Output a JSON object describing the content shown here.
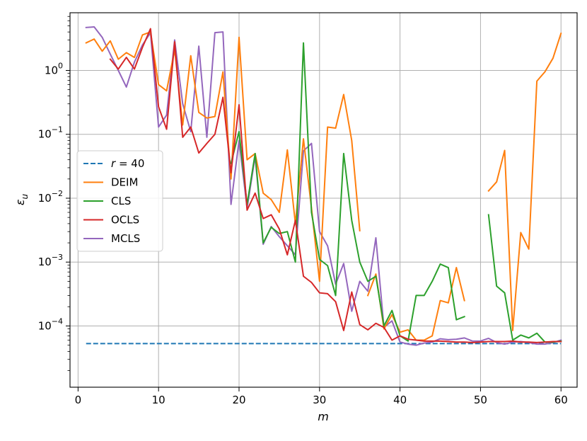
{
  "chart_data": {
    "type": "line",
    "xlabel": "m",
    "ylabel": "ε_u",
    "yscale": "log",
    "xlim": [
      -1,
      62
    ],
    "ylim": [
      1.1e-05,
      8
    ],
    "grid": true,
    "legend_position": "center-left",
    "x_ticks": [
      0,
      10,
      20,
      30,
      40,
      50,
      60
    ],
    "x_tick_labels": [
      "0",
      "10",
      "20",
      "30",
      "40",
      "50",
      "60"
    ],
    "y_ticks": [
      0.0001,
      0.001,
      0.01,
      0.1,
      1
    ],
    "y_tick_labels": [
      {
        "base": "10",
        "exp": "−4"
      },
      {
        "base": "10",
        "exp": "−3"
      },
      {
        "base": "10",
        "exp": "−2"
      },
      {
        "base": "10",
        "exp": "−1"
      },
      {
        "base": "10",
        "exp": "0"
      }
    ],
    "series": [
      {
        "name": "r = 40",
        "legend_label": {
          "var": "r",
          "rest": " = 40"
        },
        "color": "#1f77b4",
        "dashed": true,
        "points": [
          [
            1,
            5.3e-05
          ],
          [
            60,
            5.3e-05
          ]
        ]
      },
      {
        "name": "DEIM",
        "legend_label": {
          "var": "",
          "rest": "DEIM"
        },
        "color": "#ff7f0e",
        "dashed": false,
        "points": [
          [
            1,
            2.7
          ],
          [
            2,
            3.1
          ],
          [
            3,
            2.0
          ],
          [
            4,
            2.9
          ],
          [
            5,
            1.5
          ],
          [
            6,
            1.9
          ],
          [
            7,
            1.6
          ],
          [
            8,
            3.6
          ],
          [
            9,
            4.0
          ],
          [
            10,
            0.6
          ],
          [
            11,
            0.48
          ],
          [
            12,
            2.1
          ],
          [
            13,
            0.14
          ],
          [
            14,
            1.7
          ],
          [
            15,
            0.22
          ],
          [
            16,
            0.18
          ],
          [
            17,
            0.19
          ],
          [
            18,
            0.95
          ],
          [
            19,
            0.02
          ],
          [
            20,
            3.3
          ],
          [
            21,
            0.04
          ],
          [
            22,
            0.05
          ],
          [
            23,
            0.012
          ],
          [
            24,
            0.0095
          ],
          [
            25,
            0.006
          ],
          [
            26,
            0.057
          ],
          [
            27,
            0.004
          ],
          [
            28,
            0.085
          ],
          [
            29,
            0.007
          ],
          [
            30,
            0.0005
          ],
          [
            31,
            0.13
          ],
          [
            32,
            0.125
          ],
          [
            33,
            0.42
          ],
          [
            34,
            0.08
          ],
          [
            35,
            0.0031
          ],
          [
            null,
            null
          ],
          [
            36,
            0.0003
          ],
          [
            37,
            0.00065
          ],
          [
            38,
            9e-05
          ],
          [
            39,
            0.00015
          ],
          [
            40,
            8e-05
          ],
          [
            41,
            8.7e-05
          ],
          [
            42,
            6e-05
          ],
          [
            43,
            6e-05
          ],
          [
            44,
            7e-05
          ],
          [
            45,
            0.00025
          ],
          [
            46,
            0.00023
          ],
          [
            47,
            0.00082
          ],
          [
            48,
            0.00025
          ],
          [
            null,
            null
          ],
          [
            51,
            0.013
          ],
          [
            52,
            0.018
          ],
          [
            53,
            0.056
          ],
          [
            54,
            8.5e-05
          ],
          [
            55,
            0.0029
          ],
          [
            56,
            0.0016
          ],
          [
            57,
            0.68
          ],
          [
            58,
            0.95
          ],
          [
            59,
            1.55
          ],
          [
            60,
            3.8
          ]
        ]
      },
      {
        "name": "CLS",
        "legend_label": {
          "var": "",
          "rest": "CLS"
        },
        "color": "#2ca02c",
        "dashed": false,
        "points": [
          [
            19,
            0.035
          ],
          [
            20,
            0.11
          ],
          [
            21,
            0.008
          ],
          [
            22,
            0.05
          ],
          [
            23,
            0.002
          ],
          [
            24,
            0.0035
          ],
          [
            25,
            0.0028
          ],
          [
            26,
            0.003
          ],
          [
            27,
            0.001
          ],
          [
            28,
            2.7
          ],
          [
            29,
            0.006
          ],
          [
            30,
            0.0011
          ],
          [
            31,
            0.00088
          ],
          [
            32,
            0.0003
          ],
          [
            33,
            0.05
          ],
          [
            34,
            0.0045
          ],
          [
            35,
            0.001
          ],
          [
            36,
            0.0005
          ],
          [
            37,
            0.0006
          ],
          [
            38,
            0.0001
          ],
          [
            39,
            0.000175
          ],
          [
            40,
            7e-05
          ],
          [
            41,
            5.8e-05
          ],
          [
            42,
            0.0003
          ],
          [
            43,
            0.0003
          ],
          [
            44,
            0.0005
          ],
          [
            45,
            0.00093
          ],
          [
            46,
            0.00082
          ],
          [
            47,
            0.000125
          ],
          [
            48,
            0.00014
          ],
          [
            null,
            null
          ],
          [
            51,
            0.0055
          ],
          [
            52,
            0.00042
          ],
          [
            53,
            0.00033
          ],
          [
            54,
            6e-05
          ],
          [
            55,
            7.2e-05
          ],
          [
            56,
            6.5e-05
          ],
          [
            57,
            7.7e-05
          ],
          [
            58,
            5.6e-05
          ],
          [
            59,
            5.6e-05
          ],
          [
            60,
            5.8e-05
          ]
        ]
      },
      {
        "name": "OCLS",
        "legend_label": {
          "var": "",
          "rest": "OCLS"
        },
        "color": "#d62728",
        "dashed": false,
        "points": [
          [
            4,
            1.5
          ],
          [
            5,
            1.05
          ],
          [
            6,
            1.6
          ],
          [
            7,
            1.05
          ],
          [
            8,
            2.3
          ],
          [
            9,
            4.5
          ],
          [
            10,
            0.27
          ],
          [
            11,
            0.12
          ],
          [
            12,
            2.8
          ],
          [
            13,
            0.09
          ],
          [
            14,
            0.13
          ],
          [
            15,
            0.051
          ],
          [
            16,
            0.072
          ],
          [
            17,
            0.1
          ],
          [
            18,
            0.38
          ],
          [
            19,
            0.025
          ],
          [
            20,
            0.29
          ],
          [
            21,
            0.0065
          ],
          [
            22,
            0.012
          ],
          [
            23,
            0.0048
          ],
          [
            24,
            0.0055
          ],
          [
            25,
            0.0033
          ],
          [
            26,
            0.0013
          ],
          [
            27,
            0.0045
          ],
          [
            28,
            0.0006
          ],
          [
            29,
            0.00048
          ],
          [
            30,
            0.00033
          ],
          [
            31,
            0.00032
          ],
          [
            32,
            0.00024
          ],
          [
            33,
            8.5e-05
          ],
          [
            34,
            0.00034
          ],
          [
            35,
            0.000105
          ],
          [
            36,
            8.7e-05
          ],
          [
            37,
            0.00011
          ],
          [
            38,
            9.5e-05
          ],
          [
            39,
            6e-05
          ],
          [
            40,
            7e-05
          ],
          [
            41,
            6.2e-05
          ],
          [
            42,
            6e-05
          ],
          [
            43,
            5.8e-05
          ],
          [
            44,
            5.8e-05
          ],
          [
            45,
            5.8e-05
          ],
          [
            46,
            5.7e-05
          ],
          [
            47,
            5.6e-05
          ],
          [
            48,
            5.6e-05
          ],
          [
            49,
            5.5e-05
          ],
          [
            50,
            5.6e-05
          ],
          [
            51,
            5.7e-05
          ],
          [
            52,
            5.7e-05
          ],
          [
            53,
            5.7e-05
          ],
          [
            54,
            5.8e-05
          ],
          [
            55,
            5.6e-05
          ],
          [
            56,
            5.6e-05
          ],
          [
            57,
            5.5e-05
          ],
          [
            58,
            5.6e-05
          ],
          [
            59,
            5.7e-05
          ],
          [
            60,
            5.7e-05
          ]
        ]
      },
      {
        "name": "MCLS",
        "legend_label": {
          "var": "",
          "rest": "MCLS"
        },
        "color": "#9467bd",
        "dashed": false,
        "points": [
          [
            1,
            4.7
          ],
          [
            2,
            4.8
          ],
          [
            3,
            3.3
          ],
          [
            4,
            1.8
          ],
          [
            5,
            1.0
          ],
          [
            6,
            0.55
          ],
          [
            7,
            1.35
          ],
          [
            8,
            2.5
          ],
          [
            9,
            3.9
          ],
          [
            10,
            0.13
          ],
          [
            11,
            0.2
          ],
          [
            12,
            3.0
          ],
          [
            13,
            0.3
          ],
          [
            14,
            0.11
          ],
          [
            15,
            2.4
          ],
          [
            16,
            0.09
          ],
          [
            17,
            3.9
          ],
          [
            18,
            4.0
          ],
          [
            19,
            0.008
          ],
          [
            20,
            0.08
          ],
          [
            21,
            0.007
          ],
          [
            22,
            0.045
          ],
          [
            23,
            0.0019
          ],
          [
            24,
            0.0036
          ],
          [
            25,
            0.0025
          ],
          [
            26,
            0.0018
          ],
          [
            27,
            0.0013
          ],
          [
            28,
            0.055
          ],
          [
            29,
            0.072
          ],
          [
            30,
            0.003
          ],
          [
            31,
            0.0018
          ],
          [
            32,
            0.00045
          ],
          [
            33,
            0.00095
          ],
          [
            34,
            0.00017
          ],
          [
            35,
            0.0005
          ],
          [
            36,
            0.00035
          ],
          [
            37,
            0.0024
          ],
          [
            38,
            9.5e-05
          ],
          [
            39,
            0.00012
          ],
          [
            40,
            5.6e-05
          ],
          [
            41,
            5.2e-05
          ],
          [
            42,
            5e-05
          ],
          [
            43,
            5.4e-05
          ],
          [
            44,
            5.6e-05
          ],
          [
            45,
            6.3e-05
          ],
          [
            46,
            6.1e-05
          ],
          [
            47,
            6.2e-05
          ],
          [
            48,
            6.5e-05
          ],
          [
            49,
            5.8e-05
          ],
          [
            50,
            5.8e-05
          ],
          [
            51,
            6.4e-05
          ],
          [
            52,
            5.5e-05
          ],
          [
            53,
            5.2e-05
          ],
          [
            54,
            5.6e-05
          ],
          [
            55,
            5.7e-05
          ],
          [
            56,
            5.5e-05
          ],
          [
            57,
            5.2e-05
          ],
          [
            58,
            5.2e-05
          ],
          [
            59,
            5.5e-05
          ],
          [
            60,
            6e-05
          ]
        ]
      }
    ]
  }
}
